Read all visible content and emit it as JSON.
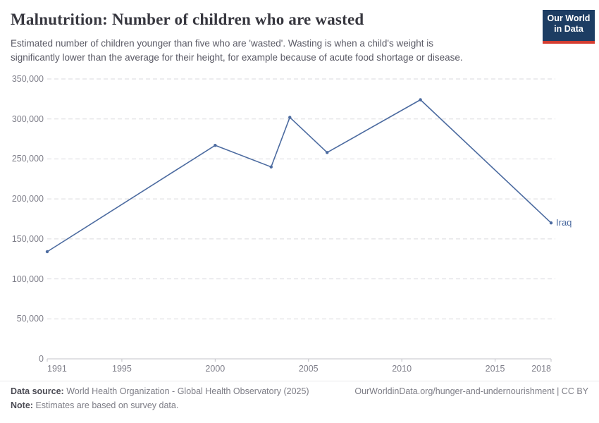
{
  "header": {
    "title": "Malnutrition: Number of children who are wasted",
    "subtitle": "Estimated number of children younger than five who are 'wasted'. Wasting is when a child's weight is significantly lower than the average for their height, for example because of acute food shortage or disease.",
    "logo": {
      "line1": "Our World",
      "line2": "in Data"
    }
  },
  "chart_data": {
    "type": "line",
    "title": "Malnutrition: Number of children who are wasted",
    "series": [
      {
        "name": "Iraq",
        "x": [
          1991,
          2000,
          2003,
          2004,
          2006,
          2011,
          2018
        ],
        "values": [
          134000,
          267000,
          240000,
          302000,
          258000,
          324000,
          170000
        ],
        "color": "#4c6ba0"
      }
    ],
    "xlabel": "",
    "ylabel": "",
    "xlim": [
      1991,
      2018
    ],
    "ylim": [
      0,
      350000
    ],
    "yticks": [
      0,
      50000,
      100000,
      150000,
      200000,
      250000,
      300000,
      350000
    ],
    "ytick_labels": [
      "0",
      "50,000",
      "100,000",
      "150,000",
      "200,000",
      "250,000",
      "300,000",
      "350,000"
    ],
    "xticks": [
      1991,
      1995,
      2000,
      2005,
      2010,
      2015,
      2018
    ],
    "grid": "horizontal-dashed",
    "legend_position": "end-of-line-label"
  },
  "footer": {
    "datasource_label": "Data source:",
    "datasource_value": "World Health Organization - Global Health Observatory (2025)",
    "link_text": "OurWorldinData.org/hunger-and-undernourishment | CC BY",
    "note_label": "Note:",
    "note_value": "Estimates are based on survey data."
  },
  "colors": {
    "line": "#4c6ba0",
    "grid": "#dadade",
    "axis": "#c3c3ca",
    "tick_label": "#7f7f8a",
    "logo_bg": "#1d3d63",
    "logo_red": "#d43d31"
  }
}
